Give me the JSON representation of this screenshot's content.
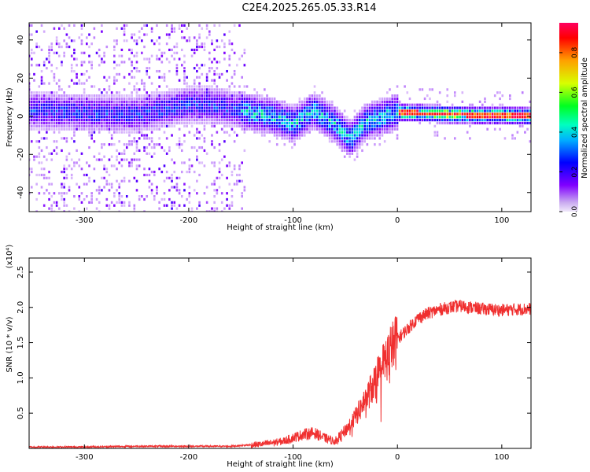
{
  "title": "C2E4.2025.265.05.33.R14",
  "chart_data": [
    {
      "type": "heatmap",
      "xlabel": "Height of straight line (km)",
      "ylabel": "Frequency (Hz)",
      "xlim": [
        -353,
        128
      ],
      "ylim": [
        -50,
        49
      ],
      "xticks": [
        -300,
        -200,
        -100,
        0,
        100
      ],
      "xtick_labels": [
        "-300",
        "-200",
        "-100",
        "0",
        "100"
      ],
      "yticks": [
        -40,
        -20,
        0,
        20,
        40
      ],
      "ytick_labels": [
        "-40",
        "-20",
        "0",
        "20",
        "40"
      ],
      "colorbar": {
        "label": "Normalized spectral amplitude",
        "range": [
          0,
          0.95
        ],
        "ticks": [
          0.0,
          0.2,
          0.4,
          0.6,
          0.8
        ],
        "tick_labels": [
          "0.0",
          "0.2",
          "0.4",
          "0.6",
          "0.8"
        ],
        "colormap": [
          "#f0e8fa",
          "#8000ff",
          "#0000ff",
          "#00d8ff",
          "#00ff40",
          "#d8ff00",
          "#ffa000",
          "#ff0000",
          "#ff0060"
        ]
      },
      "ridge": [
        {
          "x": -350,
          "f": 3
        },
        {
          "x": -300,
          "f": 2
        },
        {
          "x": -250,
          "f": 1
        },
        {
          "x": -200,
          "f": 6
        },
        {
          "x": -180,
          "f": 6
        },
        {
          "x": -150,
          "f": 3
        },
        {
          "x": -120,
          "f": 0
        },
        {
          "x": -100,
          "f": -4
        },
        {
          "x": -80,
          "f": 3
        },
        {
          "x": -60,
          "f": -4
        },
        {
          "x": -45,
          "f": -12
        },
        {
          "x": -30,
          "f": -3
        },
        {
          "x": 0,
          "f": 2
        },
        {
          "x": 50,
          "f": 1
        },
        {
          "x": 128,
          "f": 0
        }
      ]
    },
    {
      "type": "line",
      "xlabel": "Height of straight line (km)",
      "ylabel": "SNR (10 * v/v)",
      "y_scale_label": "(x10⁴)",
      "xlim": [
        -353,
        128
      ],
      "ylim": [
        0,
        2.7
      ],
      "xticks": [
        -300,
        -200,
        -100,
        0,
        100
      ],
      "xtick_labels": [
        "-300",
        "-200",
        "-100",
        "0",
        "100"
      ],
      "yticks": [
        0.5,
        1.0,
        1.5,
        2.0,
        2.5
      ],
      "ytick_labels": [
        "0.5",
        "1.0",
        "1.5",
        "2.0",
        "2.5"
      ],
      "series": [
        {
          "name": "SNR",
          "color": "#f03030",
          "x": [
            -353,
            -300,
            -250,
            -200,
            -160,
            -130,
            -110,
            -100,
            -90,
            -80,
            -70,
            -60,
            -50,
            -40,
            -30,
            -20,
            -10,
            0,
            10,
            20,
            30,
            40,
            50,
            60,
            70,
            80,
            90,
            100,
            110,
            128
          ],
          "y": [
            0.02,
            0.02,
            0.03,
            0.03,
            0.03,
            0.06,
            0.1,
            0.15,
            0.2,
            0.22,
            0.15,
            0.1,
            0.25,
            0.45,
            0.7,
            1.0,
            1.3,
            1.55,
            1.7,
            1.85,
            1.92,
            1.97,
            2.0,
            2.02,
            2.0,
            1.98,
            1.97,
            1.96,
            1.97,
            1.98
          ]
        }
      ]
    }
  ]
}
